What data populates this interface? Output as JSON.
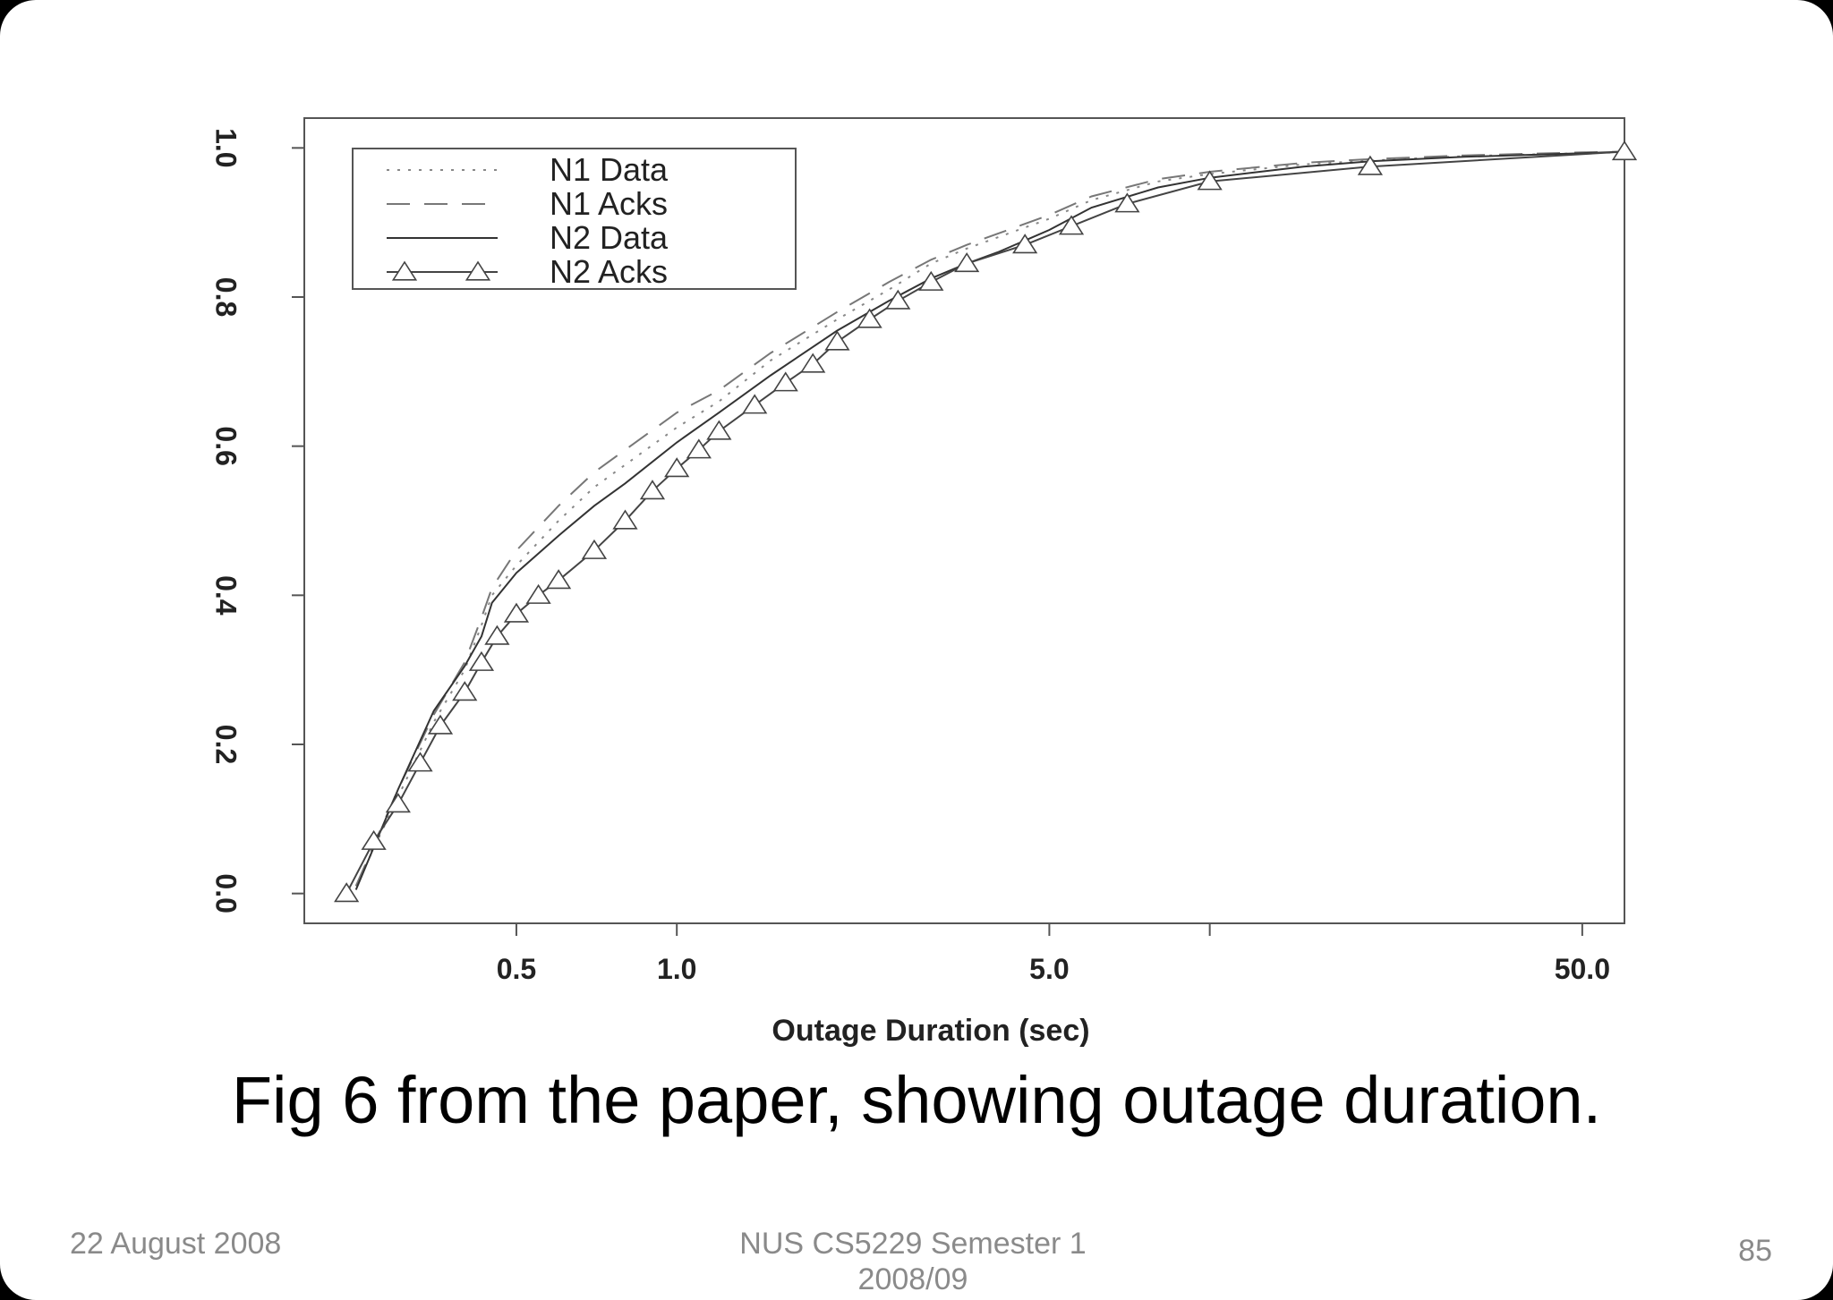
{
  "chart_data": {
    "type": "line",
    "xlabel": "Outage Duration (sec)",
    "ylabel": "",
    "xscale": "log",
    "xlim": [
      0.2,
      60
    ],
    "ylim": [
      -0.04,
      1.04
    ],
    "x_ticks": [
      {
        "value": 0.5,
        "label": "0.5"
      },
      {
        "value": 1.0,
        "label": "1.0"
      },
      {
        "value": 5.0,
        "label": "5.0"
      },
      {
        "value": 10.0,
        "label": ""
      },
      {
        "value": 50.0,
        "label": "50.0"
      }
    ],
    "y_ticks": [
      {
        "value": 0.0,
        "label": "0.0"
      },
      {
        "value": 0.2,
        "label": "0.2"
      },
      {
        "value": 0.4,
        "label": "0.4"
      },
      {
        "value": 0.6,
        "label": "0.6"
      },
      {
        "value": 0.8,
        "label": "0.8"
      },
      {
        "value": 1.0,
        "label": "1.0"
      }
    ],
    "grid": false,
    "legend_position": "top-left",
    "series": [
      {
        "name": "N1 Data",
        "style": "dotted",
        "color": "#888888",
        "x": [
          0.25,
          0.3,
          0.35,
          0.4,
          0.43,
          0.45,
          0.5,
          0.6,
          0.7,
          0.8,
          1.0,
          1.2,
          1.5,
          2.0,
          2.5,
          3.0,
          3.5,
          4.0,
          5.0,
          6.0,
          8.0,
          10.0,
          15.0,
          20.0,
          30.0,
          50.0,
          60.0
        ],
        "y": [
          0.01,
          0.13,
          0.23,
          0.3,
          0.36,
          0.4,
          0.44,
          0.5,
          0.545,
          0.575,
          0.625,
          0.66,
          0.715,
          0.77,
          0.81,
          0.845,
          0.865,
          0.88,
          0.905,
          0.93,
          0.955,
          0.965,
          0.978,
          0.983,
          0.989,
          0.993,
          0.994
        ]
      },
      {
        "name": "N1 Acks",
        "style": "dashed",
        "color": "#777777",
        "x": [
          0.25,
          0.3,
          0.35,
          0.4,
          0.43,
          0.45,
          0.5,
          0.6,
          0.7,
          0.8,
          1.0,
          1.2,
          1.5,
          2.0,
          2.5,
          3.0,
          3.5,
          4.0,
          5.0,
          6.0,
          8.0,
          10.0,
          15.0,
          20.0,
          30.0,
          50.0,
          60.0
        ],
        "y": [
          0.01,
          0.14,
          0.24,
          0.31,
          0.37,
          0.41,
          0.46,
          0.52,
          0.565,
          0.595,
          0.645,
          0.675,
          0.725,
          0.78,
          0.82,
          0.85,
          0.87,
          0.885,
          0.91,
          0.935,
          0.958,
          0.968,
          0.98,
          0.985,
          0.99,
          0.994,
          0.995
        ]
      },
      {
        "name": "N2 Data",
        "style": "solid",
        "color": "#333333",
        "x": [
          0.25,
          0.3,
          0.35,
          0.4,
          0.43,
          0.45,
          0.5,
          0.6,
          0.7,
          0.8,
          1.0,
          1.2,
          1.5,
          2.0,
          2.5,
          3.0,
          3.5,
          4.0,
          5.0,
          6.0,
          8.0,
          10.0,
          15.0,
          20.0,
          30.0,
          50.0,
          60.0
        ],
        "y": [
          0.005,
          0.14,
          0.245,
          0.305,
          0.345,
          0.39,
          0.43,
          0.48,
          0.52,
          0.55,
          0.605,
          0.645,
          0.695,
          0.755,
          0.795,
          0.825,
          0.845,
          0.86,
          0.89,
          0.92,
          0.947,
          0.96,
          0.975,
          0.982,
          0.988,
          0.993,
          0.995
        ]
      },
      {
        "name": "N2 Acks",
        "style": "solid-triangle",
        "color": "#444444",
        "x": [
          0.24,
          0.27,
          0.3,
          0.33,
          0.36,
          0.4,
          0.43,
          0.46,
          0.5,
          0.55,
          0.6,
          0.7,
          0.8,
          0.9,
          1.0,
          1.1,
          1.2,
          1.4,
          1.6,
          1.8,
          2.0,
          2.3,
          2.6,
          3.0,
          3.5,
          4.5,
          5.5,
          7.0,
          10.0,
          20.0,
          60.0
        ],
        "y": [
          0.0,
          0.07,
          0.12,
          0.175,
          0.225,
          0.27,
          0.31,
          0.345,
          0.375,
          0.4,
          0.42,
          0.46,
          0.5,
          0.54,
          0.57,
          0.595,
          0.62,
          0.655,
          0.685,
          0.71,
          0.74,
          0.77,
          0.795,
          0.82,
          0.845,
          0.87,
          0.895,
          0.925,
          0.955,
          0.975,
          0.995
        ]
      }
    ]
  },
  "caption": "Fig 6 from the paper, showing outage duration.",
  "footer": {
    "date": "22 August 2008",
    "course_line1": "NUS CS5229 Semester 1",
    "course_line2": "2008/09",
    "page_number": "85"
  }
}
